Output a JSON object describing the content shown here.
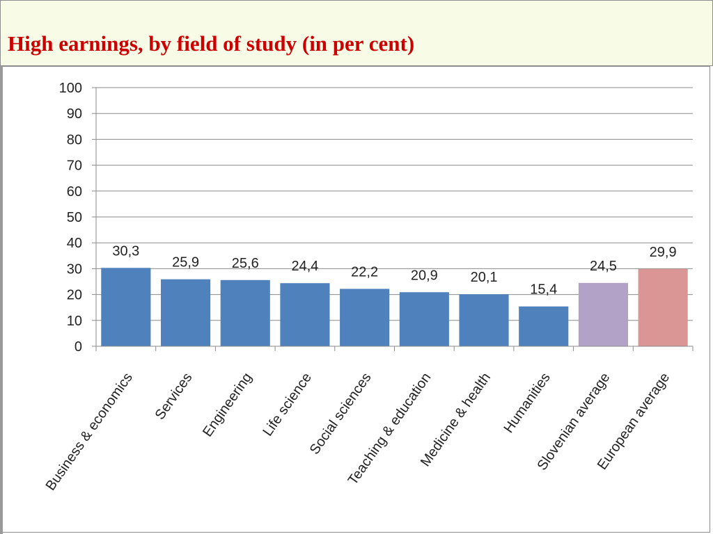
{
  "slide": {
    "title": "High earnings, by field of study (in per cent)"
  },
  "chart_data": {
    "type": "bar",
    "title": "High earnings, by field of study (in per cent)",
    "xlabel": "",
    "ylabel": "",
    "ylim": [
      0,
      100
    ],
    "yticks": [
      "0",
      "10",
      "20",
      "30",
      "40",
      "50",
      "60",
      "70",
      "80",
      "90",
      "100"
    ],
    "grid": true,
    "legend": "none",
    "categories": [
      "Business & economics",
      "Services",
      "Engineering",
      "Life science",
      "Social sciences",
      "Teaching & education",
      "Medicine & health",
      "Humanities",
      "Slovenian average",
      "European average"
    ],
    "values": [
      30.3,
      25.9,
      25.6,
      24.4,
      22.2,
      20.9,
      20.1,
      15.4,
      24.5,
      29.9
    ],
    "value_labels": [
      "30,3",
      "25,9",
      "25,6",
      "24,4",
      "22,2",
      "20,9",
      "20,1",
      "15,4",
      "24,5",
      "29,9"
    ],
    "bar_colors": [
      "#4f81bd",
      "#4f81bd",
      "#4f81bd",
      "#4f81bd",
      "#4f81bd",
      "#4f81bd",
      "#4f81bd",
      "#4f81bd",
      "#b3a2c7",
      "#d99694"
    ]
  }
}
